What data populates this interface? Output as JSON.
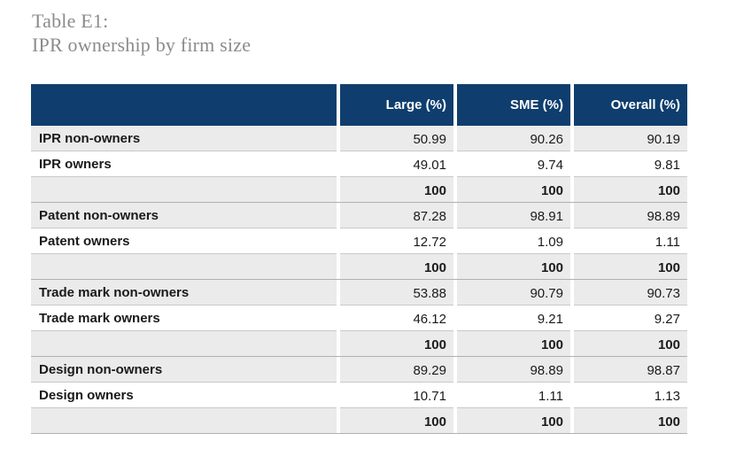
{
  "title": {
    "line1": "Table E1:",
    "line2": "IPR ownership by firm size"
  },
  "table": {
    "columns": [
      "",
      "Large (%)",
      "SME (%)",
      "Overall (%)"
    ],
    "rows": [
      {
        "label": "IPR non-owners",
        "large": "50.99",
        "sme": "90.26",
        "overall": "90.19"
      },
      {
        "label": "IPR owners",
        "large": "49.01",
        "sme": "9.74",
        "overall": "9.81"
      },
      {
        "label": "",
        "large": "100",
        "sme": "100",
        "overall": "100"
      },
      {
        "label": "Patent non-owners",
        "large": "87.28",
        "sme": "98.91",
        "overall": "98.89"
      },
      {
        "label": "Patent owners",
        "large": "12.72",
        "sme": "1.09",
        "overall": "1.11"
      },
      {
        "label": "",
        "large": "100",
        "sme": "100",
        "overall": "100"
      },
      {
        "label": "Trade mark non-owners",
        "large": "53.88",
        "sme": "90.79",
        "overall": "90.73"
      },
      {
        "label": "Trade mark owners",
        "large": "46.12",
        "sme": "9.21",
        "overall": "9.27"
      },
      {
        "label": "",
        "large": "100",
        "sme": "100",
        "overall": "100"
      },
      {
        "label": "Design non-owners",
        "large": "89.29",
        "sme": "98.89",
        "overall": "98.87"
      },
      {
        "label": "Design owners",
        "large": "10.71",
        "sme": "1.11",
        "overall": "1.13"
      },
      {
        "label": "",
        "large": "100",
        "sme": "100",
        "overall": "100"
      }
    ]
  },
  "colors": {
    "header_bg": "#0f3e6e",
    "header_text": "#ffffff",
    "title_text": "#8b8b8b",
    "row_shade": "#ebebeb"
  }
}
